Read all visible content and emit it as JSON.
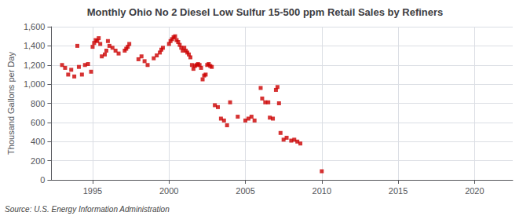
{
  "chart_data": {
    "type": "scatter",
    "title": "Monthly Ohio No 2 Diesel Low Sulfur 15-500 ppm Retail Sales by Refiners",
    "ylabel": "Thousand Gallons per Day",
    "annotations": [
      "Source: U.S. Energy Information Administration"
    ],
    "color": "#cc0000",
    "marker": "square",
    "grid": true,
    "xlim": [
      1992.3,
      2022.5
    ],
    "xticks": [
      1995,
      2000,
      2005,
      2010,
      2015,
      2020
    ],
    "ylim": [
      0,
      1600
    ],
    "yticks": [
      0,
      200,
      400,
      600,
      800,
      {
        "value": 1000,
        "label": "1,000"
      },
      {
        "value": 1200,
        "label": "1,200"
      },
      {
        "value": 1400,
        "label": "1,400"
      },
      {
        "value": 1600,
        "label": "1,600"
      }
    ],
    "x": [
      1993.0,
      1993.2,
      1993.4,
      1993.6,
      1993.8,
      1994.0,
      1994.1,
      1994.3,
      1994.5,
      1994.7,
      1994.9,
      1995.0,
      1995.1,
      1995.2,
      1995.3,
      1995.4,
      1995.5,
      1995.6,
      1995.8,
      1995.9,
      1996.0,
      1996.1,
      1996.3,
      1996.5,
      1996.7,
      1997.1,
      1997.2,
      1997.3,
      1997.4,
      1998.0,
      1998.2,
      1998.4,
      1998.6,
      1999.0,
      1999.2,
      1999.4,
      1999.5,
      1999.6,
      2000.0,
      2000.1,
      2000.2,
      2000.3,
      2000.4,
      2000.5,
      2000.6,
      2000.7,
      2000.8,
      2000.9,
      2001.0,
      2001.1,
      2001.2,
      2001.3,
      2001.4,
      2001.5,
      2001.6,
      2001.7,
      2001.8,
      2001.9,
      2002.0,
      2002.1,
      2002.2,
      2002.3,
      2002.4,
      2002.5,
      2002.6,
      2002.7,
      2002.8,
      2003.0,
      2003.2,
      2003.4,
      2003.6,
      2003.8,
      2004.0,
      2004.5,
      2005.0,
      2005.2,
      2005.4,
      2005.6,
      2006.0,
      2006.1,
      2006.3,
      2006.5,
      2006.6,
      2006.8,
      2007.0,
      2007.1,
      2007.2,
      2007.3,
      2007.5,
      2007.7,
      2008.0,
      2008.2,
      2008.4,
      2008.6,
      2010.0
    ],
    "values": [
      1200,
      1170,
      1100,
      1150,
      1080,
      1400,
      1180,
      1100,
      1200,
      1210,
      1130,
      1390,
      1430,
      1460,
      1450,
      1480,
      1420,
      1290,
      1310,
      1350,
      1450,
      1400,
      1380,
      1350,
      1320,
      1350,
      1370,
      1390,
      1420,
      1260,
      1290,
      1240,
      1200,
      1270,
      1300,
      1330,
      1360,
      1380,
      1420,
      1450,
      1470,
      1490,
      1500,
      1460,
      1440,
      1410,
      1380,
      1350,
      1380,
      1350,
      1330,
      1310,
      1280,
      1200,
      1160,
      1190,
      1200,
      1210,
      1200,
      1170,
      1050,
      1090,
      1100,
      1200,
      1210,
      1190,
      1180,
      780,
      760,
      640,
      620,
      570,
      810,
      660,
      620,
      640,
      660,
      620,
      960,
      850,
      810,
      810,
      650,
      640,
      940,
      970,
      800,
      490,
      420,
      440,
      410,
      420,
      400,
      380,
      90
    ]
  }
}
